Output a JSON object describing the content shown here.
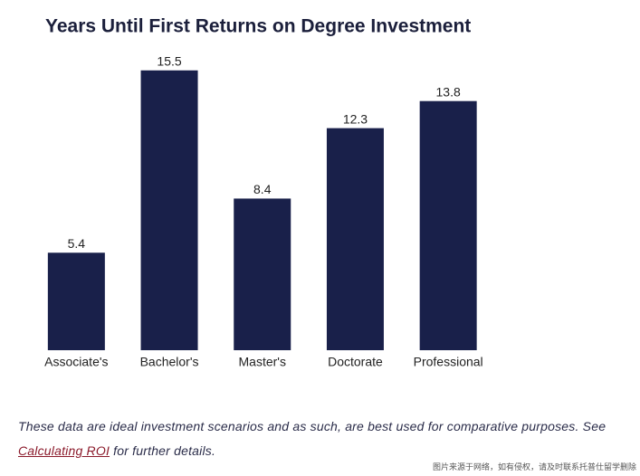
{
  "chart_data": {
    "type": "bar",
    "title": "Years Until First Returns on Degree Investment",
    "categories": [
      "Associate's",
      "Bachelor's",
      "Master's",
      "Doctorate",
      "Professional"
    ],
    "values": [
      5.4,
      15.5,
      8.4,
      12.3,
      13.8
    ],
    "color": "#19204a"
  },
  "note": {
    "text_before": "These data are ideal investment scenarios and as such, are best used for comparative purposes. See",
    "link": "Calculating ROI",
    "text_after": "for further details."
  },
  "watermark": "图片来源于网络，如有侵权，请及时联系托普仕留学删除"
}
